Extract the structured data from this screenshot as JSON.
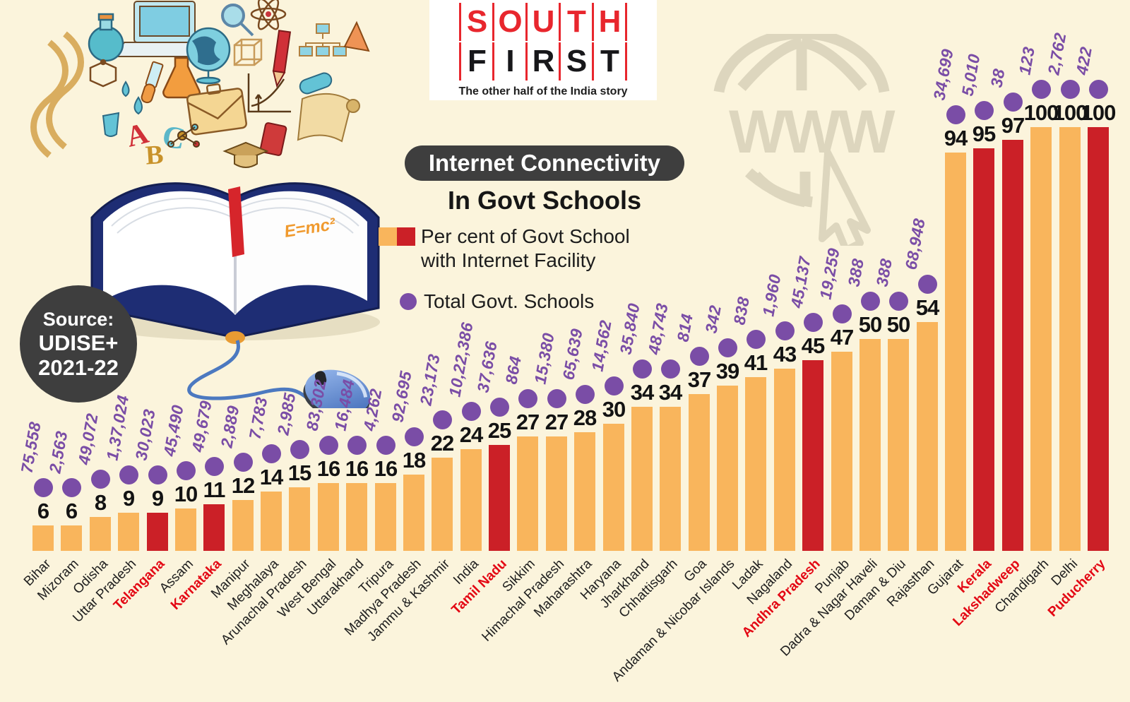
{
  "logo": {
    "word_top": "SOUTH",
    "word_bottom": "FIRST",
    "tagline": "The other half of the India story"
  },
  "header": {
    "title_pill": "Internet Connectivity",
    "subtitle": "In Govt Schools"
  },
  "legend": {
    "percent_label_line1": "Per cent of Govt School",
    "percent_label_line2": "with Internet Facility",
    "total_label": "Total Govt. Schools"
  },
  "source_badge": {
    "line1": "Source:",
    "line2": "UDISE+",
    "line3": "2021-22"
  },
  "watermark": {
    "text": "WWW"
  },
  "colors": {
    "background": "#FBF4DC",
    "bar_orange": "#F9B55C",
    "bar_red": "#CB2027",
    "dot_purple": "#7A4DA6",
    "highlight_label_red": "#E30613",
    "badge_dark": "#3E3E3E",
    "logo_red": "#E8262D",
    "watermark_gray": "#DDD6BE"
  },
  "chart_data": {
    "type": "bar",
    "title": "Internet Connectivity In Govt Schools",
    "ylabel": "Per cent of Govt School with Internet Facility",
    "secondary_series_label": "Total Govt. Schools",
    "ylim": [
      0,
      100
    ],
    "grid": false,
    "legend_position": "top-left",
    "states": [
      {
        "name": "Bihar",
        "percent": 6,
        "total_schools": "75,558",
        "highlight": false
      },
      {
        "name": "Mizoram",
        "percent": 6,
        "total_schools": "2,563",
        "highlight": false
      },
      {
        "name": "Odisha",
        "percent": 8,
        "total_schools": "49,072",
        "highlight": false
      },
      {
        "name": "Uttar Pradesh",
        "percent": 9,
        "total_schools": "1,37,024",
        "highlight": false
      },
      {
        "name": "Telangana",
        "percent": 9,
        "total_schools": "30,023",
        "highlight": true
      },
      {
        "name": "Assam",
        "percent": 10,
        "total_schools": "45,490",
        "highlight": false
      },
      {
        "name": "Karnataka",
        "percent": 11,
        "total_schools": "49,679",
        "highlight": true
      },
      {
        "name": "Manipur",
        "percent": 12,
        "total_schools": "2,889",
        "highlight": false
      },
      {
        "name": "Meghalaya",
        "percent": 14,
        "total_schools": "7,783",
        "highlight": false
      },
      {
        "name": "Arunachal Pradesh",
        "percent": 15,
        "total_schools": "2,985",
        "highlight": false
      },
      {
        "name": "West Bengal",
        "percent": 16,
        "total_schools": "83,302",
        "highlight": false
      },
      {
        "name": "Uttarakhand",
        "percent": 16,
        "total_schools": "16,484",
        "highlight": false
      },
      {
        "name": "Tripura",
        "percent": 16,
        "total_schools": "4,262",
        "highlight": false
      },
      {
        "name": "Madhya Pradesh",
        "percent": 18,
        "total_schools": "92,695",
        "highlight": false
      },
      {
        "name": "Jammu & Kashmir",
        "percent": 22,
        "total_schools": "23,173",
        "highlight": false
      },
      {
        "name": "India",
        "percent": 24,
        "total_schools": "10,22,386",
        "highlight": false
      },
      {
        "name": "Tamil Nadu",
        "percent": 25,
        "total_schools": "37,636",
        "highlight": true
      },
      {
        "name": "Sikkim",
        "percent": 27,
        "total_schools": "864",
        "highlight": false
      },
      {
        "name": "Himachal Pradesh",
        "percent": 27,
        "total_schools": "15,380",
        "highlight": false
      },
      {
        "name": "Maharashtra",
        "percent": 28,
        "total_schools": "65,639",
        "highlight": false
      },
      {
        "name": "Haryana",
        "percent": 30,
        "total_schools": "14,562",
        "highlight": false
      },
      {
        "name": "Jharkhand",
        "percent": 34,
        "total_schools": "35,840",
        "highlight": false
      },
      {
        "name": "Chhattisgarh",
        "percent": 34,
        "total_schools": "48,743",
        "highlight": false
      },
      {
        "name": "Goa",
        "percent": 37,
        "total_schools": "814",
        "highlight": false
      },
      {
        "name": "Andaman & Nicobar Islands",
        "percent": 39,
        "total_schools": "342",
        "highlight": false
      },
      {
        "name": "Ladak",
        "percent": 41,
        "total_schools": "838",
        "highlight": false
      },
      {
        "name": "Nagaland",
        "percent": 43,
        "total_schools": "1,960",
        "highlight": false
      },
      {
        "name": "Andhra Pradesh",
        "percent": 45,
        "total_schools": "45,137",
        "highlight": true
      },
      {
        "name": "Punjab",
        "percent": 47,
        "total_schools": "19,259",
        "highlight": false
      },
      {
        "name": "Dadra & Nagar Haveli",
        "percent": 50,
        "total_schools": "388",
        "highlight": false
      },
      {
        "name": "Daman & Diu",
        "percent": 50,
        "total_schools": "388",
        "highlight": false
      },
      {
        "name": "Rajasthan",
        "percent": 54,
        "total_schools": "68,948",
        "highlight": false
      },
      {
        "name": "Gujarat",
        "percent": 94,
        "total_schools": "34,699",
        "highlight": false
      },
      {
        "name": "Kerala",
        "percent": 95,
        "total_schools": "5,010",
        "highlight": true
      },
      {
        "name": "Lakshadweep",
        "percent": 97,
        "total_schools": "38",
        "highlight": true
      },
      {
        "name": "Chandigarh",
        "percent": 100,
        "total_schools": "123",
        "highlight": false
      },
      {
        "name": "Delhi",
        "percent": 100,
        "total_schools": "2,762",
        "highlight": false
      },
      {
        "name": "Puducherry",
        "percent": 100,
        "total_schools": "422",
        "highlight": true
      }
    ]
  }
}
